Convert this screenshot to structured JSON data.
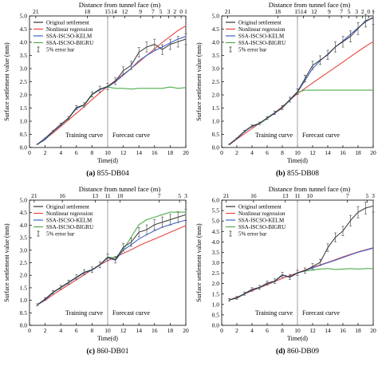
{
  "figure": {
    "top_axis_label": "Distance from tunnel face (m)",
    "y_label": "Surface settlement value (mm)",
    "x_label": "Time(d)",
    "training_label": "Training curve",
    "forecast_label": "Forecast curve"
  },
  "colors": {
    "original": "#333333",
    "nonlinear": "#e8463c",
    "kelm": "#3f63c8",
    "bigru": "#4dae4a",
    "errorbar": "#555555",
    "axis": "#000000"
  },
  "chart_data": [
    {
      "type": "line",
      "caption_tag": "(a)",
      "caption_text": "855-DB04",
      "top_ticks": [
        "21",
        "18",
        "15",
        "14",
        "12",
        "9",
        "7",
        "5",
        "3",
        "2",
        "0",
        "1"
      ],
      "xlim": [
        0,
        20
      ],
      "ylim": [
        0,
        5.0
      ],
      "x_ticks": [
        0,
        2,
        4,
        6,
        8,
        10,
        12,
        14,
        16,
        18,
        20
      ],
      "y_ticks": [
        "0.0",
        "0.5",
        "1.0",
        "1.5",
        "2.0",
        "2.5",
        "3.0",
        "3.5",
        "4.0",
        "4.5",
        "5.0"
      ],
      "split_x": 10,
      "legend": [
        "Original settlement",
        "Nonlinear regression",
        "SSA-ISCSO-KELM",
        "SSA-ISCSO-BIGRU",
        "5% error bar"
      ],
      "series": [
        {
          "name": "Original settlement",
          "key": "original",
          "x": [
            1,
            2,
            3,
            4,
            5,
            6,
            7,
            8,
            9,
            10,
            11,
            12,
            13,
            14,
            15,
            16,
            17,
            18,
            19,
            20
          ],
          "y": [
            0.12,
            0.35,
            0.62,
            0.88,
            1.12,
            1.52,
            1.62,
            2.02,
            2.22,
            2.32,
            2.52,
            2.92,
            3.12,
            3.62,
            3.82,
            3.92,
            3.72,
            3.92,
            4.02,
            4.12
          ]
        },
        {
          "name": "Nonlinear regression",
          "key": "nonlinear",
          "x": [
            1,
            2,
            3,
            4,
            5,
            6,
            7,
            8,
            9,
            10,
            11,
            12,
            13,
            14,
            15,
            16,
            17,
            18,
            19,
            20
          ],
          "y": [
            0.12,
            0.32,
            0.55,
            0.8,
            1.05,
            1.3,
            1.55,
            1.82,
            2.08,
            2.32,
            2.55,
            2.78,
            3.0,
            3.25,
            3.5,
            3.75,
            4.0,
            4.22,
            4.45,
            4.62
          ]
        },
        {
          "name": "SSA-ISCSO-KELM",
          "key": "kelm",
          "x": [
            1,
            2,
            3,
            4,
            5,
            6,
            7,
            8,
            9,
            10,
            11,
            12,
            13,
            14,
            15,
            16,
            17,
            18,
            19,
            20
          ],
          "y": [
            0.12,
            0.3,
            0.6,
            0.85,
            1.12,
            1.48,
            1.62,
            2.02,
            2.2,
            2.3,
            2.5,
            2.75,
            3.0,
            3.3,
            3.5,
            3.68,
            3.82,
            3.98,
            4.12,
            4.22
          ]
        },
        {
          "name": "SSA-ISCSO-BIGRU",
          "key": "bigru",
          "x": [
            1,
            2,
            3,
            4,
            5,
            6,
            7,
            8,
            9,
            10,
            11,
            12,
            13,
            14,
            15,
            16,
            17,
            18,
            19,
            20
          ],
          "y": [
            0.12,
            0.34,
            0.6,
            0.87,
            1.1,
            1.5,
            1.6,
            2.0,
            2.2,
            2.3,
            2.25,
            2.25,
            2.22,
            2.25,
            2.25,
            2.25,
            2.25,
            2.3,
            2.25,
            2.28
          ]
        }
      ]
    },
    {
      "type": "line",
      "caption_tag": "(b)",
      "caption_text": "855-DB08",
      "top_ticks": [
        "21",
        "18",
        "15",
        "14",
        "12",
        "9",
        "7",
        "5",
        "3",
        "2",
        "0",
        "1"
      ],
      "xlim": [
        0,
        20
      ],
      "ylim": [
        0,
        5.0
      ],
      "x_ticks": [
        0,
        2,
        4,
        6,
        8,
        10,
        12,
        14,
        16,
        18,
        20
      ],
      "y_ticks": [
        "0.0",
        "0.5",
        "1.0",
        "1.5",
        "2.0",
        "2.5",
        "3.0",
        "3.5",
        "4.0",
        "4.5",
        "5.0"
      ],
      "split_x": 10,
      "legend": [
        "Original settlement",
        "Nonlinear regression",
        "SSA-ISCSO-KELM",
        "SSA-ISCSO-BIGRU",
        "5% error bar"
      ],
      "series": [
        {
          "name": "Original settlement",
          "key": "original",
          "x": [
            1,
            2,
            3,
            4,
            5,
            6,
            7,
            8,
            9,
            10,
            11,
            12,
            13,
            14,
            15,
            16,
            17,
            18,
            19,
            20
          ],
          "y": [
            0.12,
            0.35,
            0.62,
            0.82,
            0.92,
            1.12,
            1.32,
            1.52,
            1.82,
            2.12,
            2.62,
            3.12,
            3.32,
            3.52,
            3.82,
            4.02,
            4.22,
            4.52,
            4.82,
            4.92
          ]
        },
        {
          "name": "Nonlinear regression",
          "key": "nonlinear",
          "x": [
            1,
            2,
            3,
            4,
            5,
            6,
            7,
            8,
            9,
            10,
            11,
            12,
            13,
            14,
            15,
            16,
            17,
            18,
            19,
            20
          ],
          "y": [
            0.1,
            0.32,
            0.52,
            0.72,
            0.92,
            1.12,
            1.32,
            1.55,
            1.8,
            2.05,
            2.25,
            2.45,
            2.65,
            2.85,
            3.05,
            3.25,
            3.45,
            3.65,
            3.85,
            4.02
          ]
        },
        {
          "name": "SSA-ISCSO-KELM",
          "key": "kelm",
          "x": [
            1,
            2,
            3,
            4,
            5,
            6,
            7,
            8,
            9,
            10,
            11,
            12,
            13,
            14,
            15,
            16,
            17,
            18,
            19,
            20
          ],
          "y": [
            0.12,
            0.33,
            0.6,
            0.8,
            0.92,
            1.12,
            1.3,
            1.52,
            1.8,
            2.1,
            2.55,
            3.0,
            3.3,
            3.55,
            3.82,
            4.05,
            4.3,
            4.55,
            4.78,
            4.95
          ]
        },
        {
          "name": "SSA-ISCSO-BIGRU",
          "key": "bigru",
          "x": [
            1,
            2,
            3,
            4,
            5,
            6,
            7,
            8,
            9,
            10,
            11,
            12,
            13,
            14,
            15,
            16,
            17,
            18,
            19,
            20
          ],
          "y": [
            0.12,
            0.34,
            0.6,
            0.8,
            0.9,
            1.1,
            1.3,
            1.5,
            1.8,
            2.1,
            2.18,
            2.18,
            2.18,
            2.18,
            2.18,
            2.18,
            2.18,
            2.18,
            2.18,
            2.18
          ]
        }
      ]
    },
    {
      "type": "line",
      "caption_tag": "(c)",
      "caption_text": "860-DB01",
      "top_ticks": [
        "21",
        "16",
        "13",
        "11",
        "10",
        "7",
        "5",
        "3"
      ],
      "xlim": [
        0,
        20
      ],
      "ylim": [
        0,
        5.0
      ],
      "x_ticks": [
        0,
        2,
        4,
        6,
        8,
        10,
        12,
        14,
        16,
        18,
        20
      ],
      "y_ticks": [
        "0.0",
        "0.5",
        "1.0",
        "1.5",
        "2.0",
        "2.5",
        "3.0",
        "3.5",
        "4.0",
        "4.5",
        "5.0"
      ],
      "split_x": 10,
      "legend": [
        "Original settlement",
        "Nonlinear regression",
        "SSA-ISCSO-KELM",
        "SSA-ISCSO-BIGRU",
        "5% error bar"
      ],
      "series": [
        {
          "name": "Original settlement",
          "key": "original",
          "x": [
            1,
            2,
            3,
            4,
            5,
            6,
            7,
            8,
            9,
            10,
            11,
            12,
            13,
            14,
            15,
            16,
            17,
            18,
            19,
            20
          ],
          "y": [
            0.82,
            1.05,
            1.32,
            1.52,
            1.72,
            1.92,
            2.12,
            2.22,
            2.42,
            2.72,
            2.62,
            3.12,
            3.32,
            3.72,
            3.82,
            4.02,
            4.12,
            4.22,
            4.32,
            4.42
          ]
        },
        {
          "name": "Nonlinear regression",
          "key": "nonlinear",
          "x": [
            1,
            2,
            3,
            4,
            5,
            6,
            7,
            8,
            9,
            10,
            11,
            12,
            13,
            14,
            15,
            16,
            17,
            18,
            19,
            20
          ],
          "y": [
            0.82,
            1.0,
            1.22,
            1.42,
            1.62,
            1.82,
            2.02,
            2.22,
            2.42,
            2.58,
            2.72,
            2.88,
            3.02,
            3.18,
            3.32,
            3.45,
            3.58,
            3.72,
            3.85,
            3.98
          ]
        },
        {
          "name": "SSA-ISCSO-KELM",
          "key": "kelm",
          "x": [
            1,
            2,
            3,
            4,
            5,
            6,
            7,
            8,
            9,
            10,
            11,
            12,
            13,
            14,
            15,
            16,
            17,
            18,
            19,
            20
          ],
          "y": [
            0.82,
            1.02,
            1.3,
            1.5,
            1.7,
            1.9,
            2.1,
            2.2,
            2.4,
            2.7,
            2.6,
            3.0,
            3.22,
            3.45,
            3.62,
            3.78,
            3.92,
            4.02,
            4.12,
            4.2
          ]
        },
        {
          "name": "SSA-ISCSO-BIGRU",
          "key": "bigru",
          "x": [
            1,
            2,
            3,
            4,
            5,
            6,
            7,
            8,
            9,
            10,
            11,
            12,
            13,
            14,
            15,
            16,
            17,
            18,
            19,
            20
          ],
          "y": [
            0.82,
            1.05,
            1.32,
            1.52,
            1.72,
            1.92,
            2.12,
            2.22,
            2.42,
            2.72,
            2.7,
            3.02,
            3.52,
            4.02,
            4.22,
            4.32,
            4.42,
            4.52,
            4.52,
            4.52
          ]
        }
      ]
    },
    {
      "type": "line",
      "caption_tag": "(d)",
      "caption_text": "860-DB09",
      "top_ticks": [
        "21",
        "16",
        "13",
        "11",
        "10",
        "7",
        "5",
        "3"
      ],
      "xlim": [
        0,
        20
      ],
      "ylim": [
        0,
        6.0
      ],
      "x_ticks": [
        0,
        2,
        4,
        6,
        8,
        10,
        12,
        14,
        16,
        18,
        20
      ],
      "y_ticks": [
        "0.0",
        "0.5",
        "1.0",
        "1.5",
        "2.0",
        "2.5",
        "3.0",
        "3.5",
        "4.0",
        "4.5",
        "5.0",
        "5.5",
        "6.0"
      ],
      "split_x": 10,
      "legend": [
        "Original settlement",
        "Nonlinear regression",
        "SSA-ISCSO-KELM",
        "SSA-ISCSO-BIGRU",
        "5% error bar"
      ],
      "series": [
        {
          "name": "Original settlement",
          "key": "original",
          "x": [
            1,
            2,
            3,
            4,
            5,
            6,
            7,
            8,
            9,
            10,
            11,
            12,
            13,
            14,
            15,
            16,
            17,
            18,
            19,
            20
          ],
          "y": [
            1.22,
            1.32,
            1.52,
            1.72,
            1.82,
            2.02,
            2.12,
            2.42,
            2.32,
            2.52,
            2.62,
            2.82,
            3.02,
            3.72,
            4.22,
            4.52,
            5.02,
            5.42,
            5.62,
            5.72
          ]
        },
        {
          "name": "Nonlinear regression",
          "key": "nonlinear",
          "x": [
            1,
            2,
            3,
            4,
            5,
            6,
            7,
            8,
            9,
            10,
            11,
            12,
            13,
            14,
            15,
            16,
            17,
            18,
            19,
            20
          ],
          "y": [
            1.22,
            1.35,
            1.5,
            1.65,
            1.8,
            1.95,
            2.1,
            2.25,
            2.38,
            2.52,
            2.65,
            2.78,
            2.9,
            3.02,
            3.15,
            3.28,
            3.4,
            3.52,
            3.62,
            3.72
          ]
        },
        {
          "name": "SSA-ISCSO-KELM",
          "key": "kelm",
          "x": [
            1,
            2,
            3,
            4,
            5,
            6,
            7,
            8,
            9,
            10,
            11,
            12,
            13,
            14,
            15,
            16,
            17,
            18,
            19,
            20
          ],
          "y": [
            1.22,
            1.3,
            1.5,
            1.7,
            1.8,
            2.0,
            2.1,
            2.4,
            2.3,
            2.5,
            2.62,
            2.75,
            2.88,
            3.0,
            3.12,
            3.25,
            3.38,
            3.5,
            3.6,
            3.7
          ]
        },
        {
          "name": "SSA-ISCSO-BIGRU",
          "key": "bigru",
          "x": [
            1,
            2,
            3,
            4,
            5,
            6,
            7,
            8,
            9,
            10,
            11,
            12,
            13,
            14,
            15,
            16,
            17,
            18,
            19,
            20
          ],
          "y": [
            1.22,
            1.32,
            1.52,
            1.72,
            1.82,
            2.02,
            2.12,
            2.42,
            2.32,
            2.52,
            2.6,
            2.65,
            2.7,
            2.72,
            2.68,
            2.7,
            2.72,
            2.7,
            2.72,
            2.72
          ]
        }
      ]
    }
  ]
}
